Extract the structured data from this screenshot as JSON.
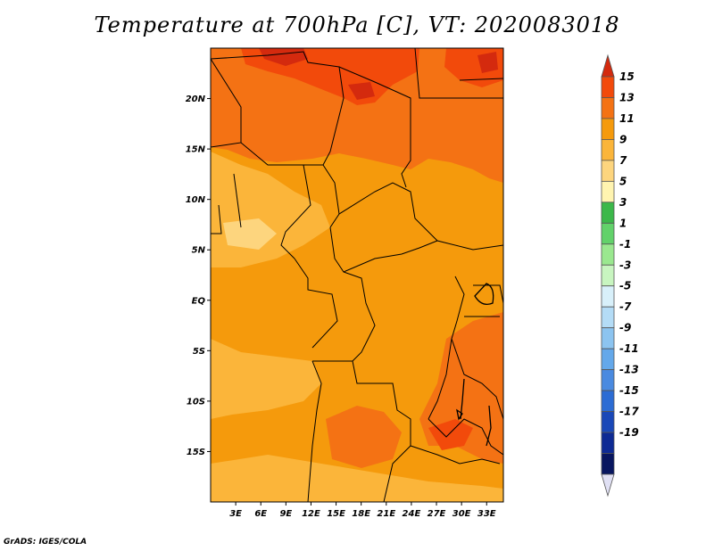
{
  "title": "Temperature at 700hPa [C], VT: 2020083018",
  "credit": "GrADS: IGES/COLA",
  "map": {
    "region": "Central Africa",
    "lon_range": [
      0,
      35
    ],
    "lat_range": [
      -20,
      25
    ],
    "lat_ticks": [
      "20N",
      "15N",
      "10N",
      "5N",
      "EQ",
      "5S",
      "10S",
      "15S"
    ],
    "lat_values": [
      20,
      15,
      10,
      5,
      0,
      -5,
      -10,
      -15
    ],
    "lon_ticks": [
      "3E",
      "6E",
      "9E",
      "12E",
      "15E",
      "18E",
      "21E",
      "24E",
      "27E",
      "30E",
      "33E"
    ],
    "lon_values": [
      3,
      6,
      9,
      12,
      15,
      18,
      21,
      24,
      27,
      30,
      33
    ]
  },
  "colorbar": {
    "labels": [
      "15",
      "13",
      "11",
      "9",
      "7",
      "5",
      "3",
      "1",
      "-1",
      "-3",
      "-5",
      "-7",
      "-9",
      "-11",
      "-13",
      "-15",
      "-17",
      "-19"
    ],
    "colors": [
      "#d42a0e",
      "#f24a0b",
      "#f47214",
      "#f59a0c",
      "#fbb53a",
      "#fdd57e",
      "#fff4b0",
      "#3cb84a",
      "#62d26a",
      "#9ae88f",
      "#c8f5c0",
      "#d8f0fa",
      "#b4dcf6",
      "#8cc4f0",
      "#64a8ea",
      "#4a8ae0",
      "#2c6cd4",
      "#1a48b8",
      "#0e2a94",
      "#081660",
      "#e0e0f4"
    ]
  }
}
